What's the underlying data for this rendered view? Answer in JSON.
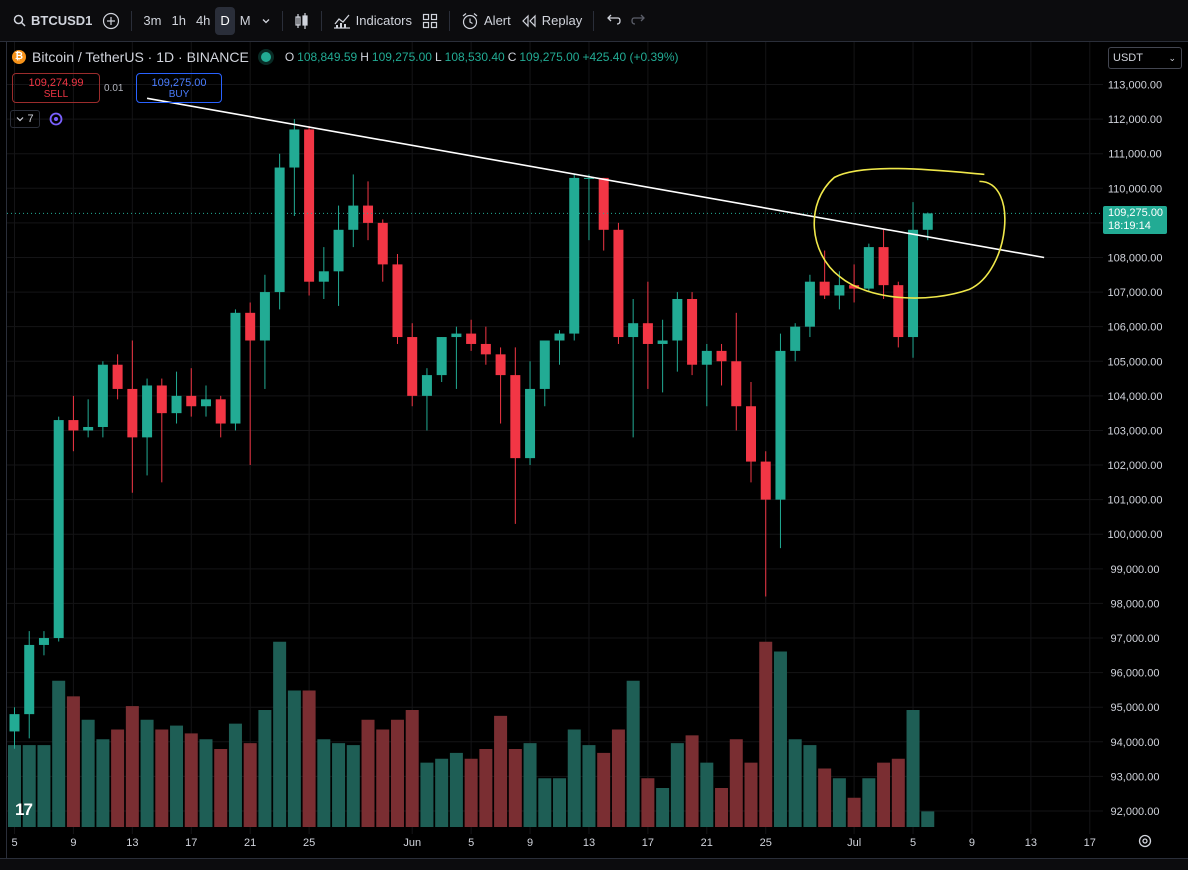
{
  "toolbar": {
    "symbol": "BTCUSD1",
    "timeframes": [
      {
        "label": "3m",
        "active": false
      },
      {
        "label": "1h",
        "active": false
      },
      {
        "label": "4h",
        "active": false
      },
      {
        "label": "D",
        "active": true
      },
      {
        "label": "M",
        "active": false
      }
    ],
    "indicators_label": "Indicators",
    "alert_label": "Alert",
    "replay_label": "Replay",
    "icons": [
      "search-icon",
      "add-symbol-icon",
      "chevron-down-icon",
      "candles-icon",
      "indicators-icon",
      "layout-grid-icon",
      "alert-clock-icon",
      "replay-icon",
      "undo-icon",
      "redo-icon"
    ]
  },
  "legend": {
    "title": "Bitcoin / TetherUS · 1D · BINANCE",
    "o_key": "O",
    "o_val": "108,849.59",
    "h_key": "H",
    "h_val": "109,275.00",
    "l_key": "L",
    "l_val": "108,530.40",
    "c_key": "C",
    "c_val": "109,275.00",
    "change": "+425.40 (+0.39%)"
  },
  "trade": {
    "sell_price": "109,274.99",
    "sell_label": "SELL",
    "spread": "0.01",
    "buy_price": "109,275.00",
    "buy_label": "BUY",
    "indicator_count": "7"
  },
  "currency": "USDT",
  "last_price": {
    "price": "109,275.00",
    "countdown": "18:19:14"
  },
  "colors": {
    "up": "#22ab94",
    "down": "#f23645",
    "up_volume": "#1e5e55",
    "down_volume": "#7a2e32",
    "trendline": "#ffffff",
    "highlight": "#f0e84a"
  },
  "chart_data": {
    "type": "candlestick",
    "interval": "1D",
    "y_ticks": [
      "92,000.00",
      "93,000.00",
      "94,000.00",
      "95,000.00",
      "96,000.00",
      "97,000.00",
      "98,000.00",
      "99,000.00",
      "100,000.00",
      "101,000.00",
      "102,000.00",
      "103,000.00",
      "104,000.00",
      "105,000.00",
      "106,000.00",
      "107,000.00",
      "108,000.00",
      "109,000.00",
      "110,000.00",
      "111,000.00",
      "112,000.00",
      "113,000.00"
    ],
    "ylim": [
      91600,
      113500
    ],
    "x_ticks": [
      {
        "label": "5",
        "day": 0
      },
      {
        "label": "9",
        "day": 4
      },
      {
        "label": "13",
        "day": 8
      },
      {
        "label": "17",
        "day": 12
      },
      {
        "label": "21",
        "day": 16
      },
      {
        "label": "25",
        "day": 20
      },
      {
        "label": "Jun",
        "day": 27
      },
      {
        "label": "5",
        "day": 31
      },
      {
        "label": "9",
        "day": 35
      },
      {
        "label": "13",
        "day": 39
      },
      {
        "label": "17",
        "day": 43
      },
      {
        "label": "21",
        "day": 47
      },
      {
        "label": "25",
        "day": 51
      },
      {
        "label": "Jul",
        "day": 57
      },
      {
        "label": "5",
        "day": 61
      },
      {
        "label": "9",
        "day": 65
      },
      {
        "label": "13",
        "day": 69
      },
      {
        "label": "17",
        "day": 73
      }
    ],
    "candles": [
      {
        "o": 94300,
        "h": 95000,
        "l": 93800,
        "c": 94800,
        "v": 0.42
      },
      {
        "o": 94800,
        "h": 97200,
        "l": 94100,
        "c": 96800,
        "v": 0.42
      },
      {
        "o": 96800,
        "h": 97200,
        "l": 96500,
        "c": 97000,
        "v": 0.42
      },
      {
        "o": 97000,
        "h": 103400,
        "l": 96900,
        "c": 103300,
        "v": 0.75
      },
      {
        "o": 103300,
        "h": 104000,
        "l": 102400,
        "c": 103000,
        "v": 0.67
      },
      {
        "o": 103000,
        "h": 103900,
        "l": 102800,
        "c": 103100,
        "v": 0.55
      },
      {
        "o": 103100,
        "h": 105000,
        "l": 102800,
        "c": 104900,
        "v": 0.45
      },
      {
        "o": 104900,
        "h": 105200,
        "l": 103900,
        "c": 104200,
        "v": 0.5
      },
      {
        "o": 104200,
        "h": 105600,
        "l": 101200,
        "c": 102800,
        "v": 0.62
      },
      {
        "o": 102800,
        "h": 104500,
        "l": 101700,
        "c": 104300,
        "v": 0.55
      },
      {
        "o": 104300,
        "h": 104500,
        "l": 101500,
        "c": 103500,
        "v": 0.5
      },
      {
        "o": 103500,
        "h": 104700,
        "l": 103200,
        "c": 104000,
        "v": 0.52
      },
      {
        "o": 104000,
        "h": 104800,
        "l": 103400,
        "c": 103700,
        "v": 0.48
      },
      {
        "o": 103700,
        "h": 104300,
        "l": 103400,
        "c": 103900,
        "v": 0.45
      },
      {
        "o": 103900,
        "h": 104000,
        "l": 102800,
        "c": 103200,
        "v": 0.4
      },
      {
        "o": 103200,
        "h": 106500,
        "l": 103000,
        "c": 106400,
        "v": 0.53
      },
      {
        "o": 106400,
        "h": 106700,
        "l": 102000,
        "c": 105600,
        "v": 0.43
      },
      {
        "o": 105600,
        "h": 107500,
        "l": 104200,
        "c": 107000,
        "v": 0.6
      },
      {
        "o": 107000,
        "h": 111000,
        "l": 106500,
        "c": 110600,
        "v": 0.95
      },
      {
        "o": 110600,
        "h": 112000,
        "l": 109200,
        "c": 111700,
        "v": 0.7
      },
      {
        "o": 111700,
        "h": 111800,
        "l": 106900,
        "c": 107300,
        "v": 0.7
      },
      {
        "o": 107300,
        "h": 108300,
        "l": 106800,
        "c": 107600,
        "v": 0.45
      },
      {
        "o": 107600,
        "h": 109500,
        "l": 106600,
        "c": 108800,
        "v": 0.43
      },
      {
        "o": 108800,
        "h": 110400,
        "l": 108300,
        "c": 109500,
        "v": 0.42
      },
      {
        "o": 109500,
        "h": 110200,
        "l": 108500,
        "c": 109000,
        "v": 0.55
      },
      {
        "o": 109000,
        "h": 109100,
        "l": 107300,
        "c": 107800,
        "v": 0.5
      },
      {
        "o": 107800,
        "h": 108100,
        "l": 105500,
        "c": 105700,
        "v": 0.55
      },
      {
        "o": 105700,
        "h": 106100,
        "l": 103700,
        "c": 104000,
        "v": 0.6
      },
      {
        "o": 104000,
        "h": 104800,
        "l": 103000,
        "c": 104600,
        "v": 0.33
      },
      {
        "o": 104600,
        "h": 105700,
        "l": 104400,
        "c": 105700,
        "v": 0.35
      },
      {
        "o": 105700,
        "h": 106000,
        "l": 104200,
        "c": 105800,
        "v": 0.38
      },
      {
        "o": 105800,
        "h": 106200,
        "l": 105300,
        "c": 105500,
        "v": 0.35
      },
      {
        "o": 105500,
        "h": 106000,
        "l": 104900,
        "c": 105200,
        "v": 0.4
      },
      {
        "o": 105200,
        "h": 105400,
        "l": 103200,
        "c": 104600,
        "v": 0.57
      },
      {
        "o": 104600,
        "h": 105400,
        "l": 100300,
        "c": 102200,
        "v": 0.4
      },
      {
        "o": 102200,
        "h": 105000,
        "l": 102000,
        "c": 104200,
        "v": 0.43
      },
      {
        "o": 104200,
        "h": 105600,
        "l": 103700,
        "c": 105600,
        "v": 0.25
      },
      {
        "o": 105600,
        "h": 105900,
        "l": 104900,
        "c": 105800,
        "v": 0.25
      },
      {
        "o": 105800,
        "h": 110400,
        "l": 105600,
        "c": 110300,
        "v": 0.5
      },
      {
        "o": 110300,
        "h": 110400,
        "l": 108500,
        "c": 110300,
        "v": 0.42
      },
      {
        "o": 110300,
        "h": 110300,
        "l": 108200,
        "c": 108800,
        "v": 0.38
      },
      {
        "o": 108800,
        "h": 109000,
        "l": 105500,
        "c": 105700,
        "v": 0.5
      },
      {
        "o": 105700,
        "h": 106800,
        "l": 102800,
        "c": 106100,
        "v": 0.75
      },
      {
        "o": 106100,
        "h": 107300,
        "l": 104200,
        "c": 105500,
        "v": 0.25
      },
      {
        "o": 105500,
        "h": 106200,
        "l": 104100,
        "c": 105600,
        "v": 0.2
      },
      {
        "o": 105600,
        "h": 107000,
        "l": 104700,
        "c": 106800,
        "v": 0.43
      },
      {
        "o": 106800,
        "h": 107000,
        "l": 104600,
        "c": 104900,
        "v": 0.47
      },
      {
        "o": 104900,
        "h": 105500,
        "l": 103700,
        "c": 105300,
        "v": 0.33
      },
      {
        "o": 105300,
        "h": 105500,
        "l": 104300,
        "c": 105000,
        "v": 0.2
      },
      {
        "o": 105000,
        "h": 106400,
        "l": 103000,
        "c": 103700,
        "v": 0.45
      },
      {
        "o": 103700,
        "h": 104400,
        "l": 101500,
        "c": 102100,
        "v": 0.33
      },
      {
        "o": 102100,
        "h": 102400,
        "l": 98200,
        "c": 101000,
        "v": 0.95
      },
      {
        "o": 101000,
        "h": 105800,
        "l": 99600,
        "c": 105300,
        "v": 0.9
      },
      {
        "o": 105300,
        "h": 106100,
        "l": 105000,
        "c": 106000,
        "v": 0.45
      },
      {
        "o": 106000,
        "h": 107500,
        "l": 105700,
        "c": 107300,
        "v": 0.42
      },
      {
        "o": 107300,
        "h": 108200,
        "l": 106800,
        "c": 106900,
        "v": 0.3
      },
      {
        "o": 106900,
        "h": 107600,
        "l": 106500,
        "c": 107200,
        "v": 0.25
      },
      {
        "o": 107200,
        "h": 107800,
        "l": 106700,
        "c": 107100,
        "v": 0.15
      },
      {
        "o": 107100,
        "h": 108400,
        "l": 107000,
        "c": 108300,
        "v": 0.25
      },
      {
        "o": 108300,
        "h": 108800,
        "l": 106800,
        "c": 107200,
        "v": 0.33
      },
      {
        "o": 107200,
        "h": 107300,
        "l": 105400,
        "c": 105700,
        "v": 0.35
      },
      {
        "o": 105700,
        "h": 109600,
        "l": 105100,
        "c": 108800,
        "v": 0.6
      },
      {
        "o": 108800,
        "h": 109300,
        "l": 108500,
        "c": 109275,
        "v": 0.08
      }
    ],
    "trendline": {
      "x1": 9.0,
      "y1": 112600,
      "x2": 69.9,
      "y2": 108000
    },
    "price_line": 109275
  }
}
